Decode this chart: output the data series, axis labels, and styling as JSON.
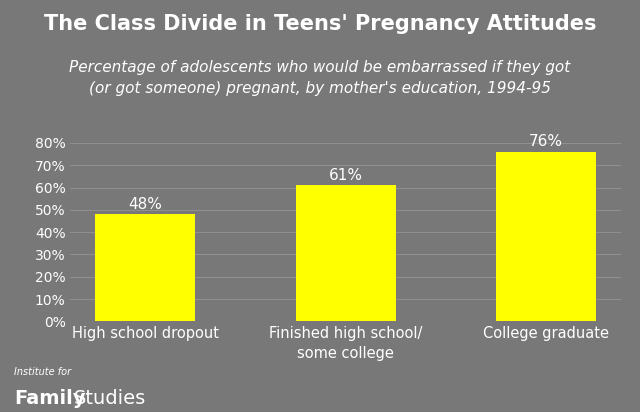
{
  "title": "The Class Divide in Teens' Pregnancy Attitudes",
  "subtitle": "Percentage of adolescents who would be embarrassed if they got\n(or got someone) pregnant, by mother's education, 1994-95",
  "categories": [
    "High school dropout",
    "Finished high school/\nsome college",
    "College graduate"
  ],
  "values": [
    48,
    61,
    76
  ],
  "bar_color": "#ffff00",
  "background_color": "#787878",
  "text_color": "#ffffff",
  "grid_color": "#909090",
  "ylabel_ticks": [
    "0%",
    "10%",
    "20%",
    "30%",
    "40%",
    "50%",
    "60%",
    "70%",
    "80%"
  ],
  "ytick_values": [
    0,
    10,
    20,
    30,
    40,
    50,
    60,
    70,
    80
  ],
  "ylim": [
    0,
    85
  ],
  "title_fontsize": 15,
  "subtitle_fontsize": 11,
  "tick_fontsize": 10,
  "label_fontsize": 10.5,
  "value_fontsize": 11,
  "watermark_small": "Institute for",
  "watermark_bold": "Family",
  "watermark_normal": "Studies"
}
